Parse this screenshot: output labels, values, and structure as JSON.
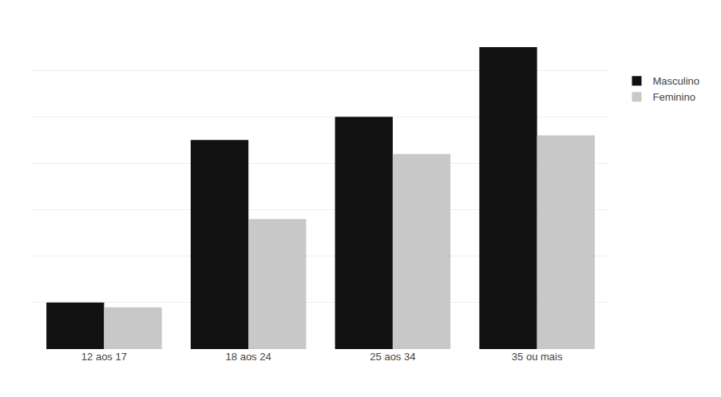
{
  "chart_data": {
    "type": "bar",
    "categories": [
      "12 aos 17",
      "18 aos 24",
      "25 aos 34",
      "35 ou mais"
    ],
    "series": [
      {
        "name": "Masculino",
        "color": "#111111",
        "values": [
          1.0,
          4.5,
          5.0,
          6.5
        ]
      },
      {
        "name": "Feminino",
        "color": "#c8c8c8",
        "values": [
          0.9,
          2.8,
          4.2,
          4.6
        ]
      }
    ],
    "ylim": [
      0,
      7
    ],
    "yticks": [
      0,
      1,
      2,
      3,
      4,
      5,
      6,
      7
    ],
    "grid": true,
    "legend": "right",
    "tick_labels": "x"
  }
}
